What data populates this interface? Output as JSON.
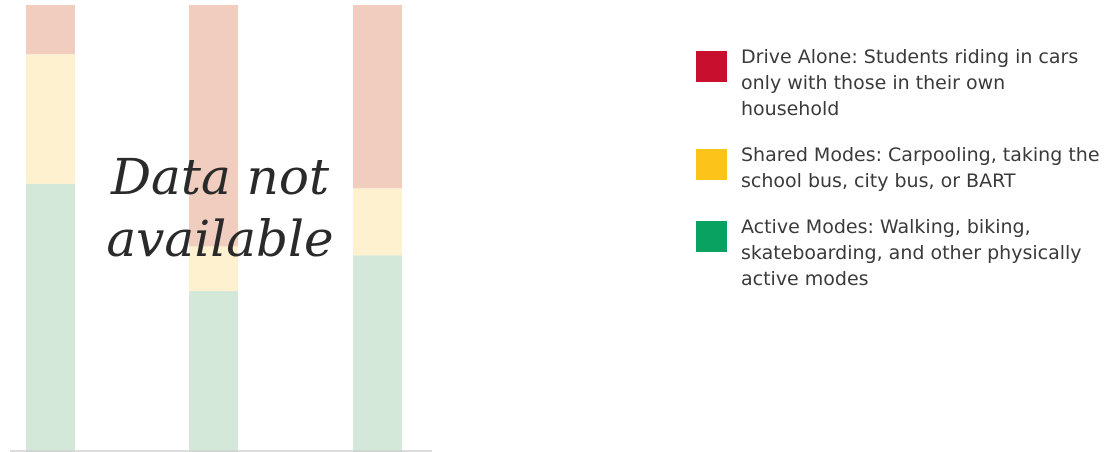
{
  "chart_data": {
    "type": "bar",
    "stacked": true,
    "categories": [
      "",
      "",
      ""
    ],
    "series": [
      {
        "name": "Active Modes: Walking, biking, skateboarding, and other physically active modes",
        "color": "#d3e8d9",
        "values": [
          60,
          36,
          44
        ]
      },
      {
        "name": "Shared Modes: Carpooling, taking the school bus, city bus, or BART",
        "color": "#fdf1cf",
        "values": [
          29,
          10,
          15
        ]
      },
      {
        "name": "Drive Alone: Students riding in cars only with those in their own household",
        "color": "#f0cdbf",
        "values": [
          11,
          54,
          41
        ]
      }
    ],
    "ylim": [
      0,
      100
    ],
    "grid": false,
    "overlay_text": [
      "Data not",
      "available"
    ],
    "legend_position": "right"
  },
  "legend": {
    "items": [
      {
        "label": "Drive Alone: Students riding in cars only with those in their own household",
        "color": "#c8102e"
      },
      {
        "label": "Shared Modes: Carpooling, taking the school bus, city bus, or BART",
        "color": "#fcc419"
      },
      {
        "label": "Active Modes: Walking, biking, skateboarding, and other physically active modes",
        "color": "#0aa261"
      }
    ]
  },
  "colors": {
    "axis": "#d0d0d0",
    "overlay_text": "#2a2a2a"
  }
}
